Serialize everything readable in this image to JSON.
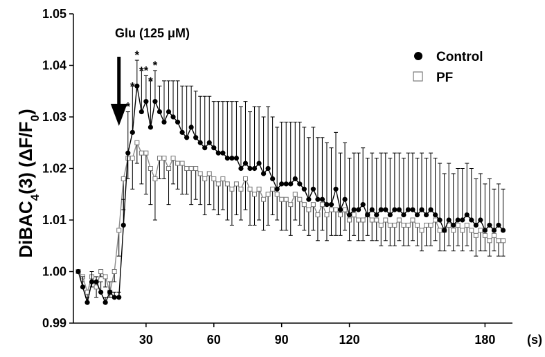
{
  "chart_data": {
    "type": "line",
    "ylabel_parts": {
      "base": "DiBAC",
      "sub1": "4",
      "mid": "(3) (ΔF/F",
      "sub2": "0",
      "end": ")"
    },
    "x_unit": "(s)",
    "xlim": [
      0,
      190
    ],
    "ylim": [
      0.99,
      1.05
    ],
    "x_ticks": [
      30,
      60,
      90,
      120,
      180
    ],
    "y_ticks": [
      0.99,
      1.0,
      1.01,
      1.02,
      1.03,
      1.04,
      1.05
    ],
    "y_tick_labels": [
      "0.99",
      "1.00",
      "1.01",
      "1.02",
      "1.03",
      "1.04",
      "1.05"
    ],
    "grid": false,
    "legend_position": "top-right",
    "annotation": {
      "text": "Glu (125 μM)",
      "x": 18
    },
    "significance_marker": "*",
    "significance_x": [
      22,
      24,
      26,
      28,
      30,
      32,
      34
    ],
    "series": [
      {
        "name": "Control",
        "marker": "filled-circle",
        "color": "#000000",
        "x": [
          0,
          2,
          4,
          6,
          8,
          10,
          12,
          14,
          16,
          18,
          20,
          22,
          24,
          26,
          28,
          30,
          32,
          34,
          36,
          38,
          40,
          42,
          44,
          46,
          48,
          50,
          52,
          54,
          56,
          58,
          60,
          62,
          64,
          66,
          68,
          70,
          72,
          74,
          76,
          78,
          80,
          82,
          84,
          86,
          88,
          90,
          92,
          94,
          96,
          98,
          100,
          102,
          104,
          106,
          108,
          110,
          112,
          114,
          116,
          118,
          120,
          122,
          124,
          126,
          128,
          130,
          132,
          134,
          136,
          138,
          140,
          142,
          144,
          146,
          148,
          150,
          152,
          154,
          156,
          158,
          160,
          162,
          164,
          166,
          168,
          170,
          172,
          174,
          176,
          178,
          180,
          182,
          184,
          186,
          188
        ],
        "values": [
          1.0,
          0.997,
          0.994,
          0.998,
          0.998,
          0.996,
          0.994,
          0.996,
          0.995,
          0.995,
          1.009,
          1.023,
          1.027,
          1.036,
          1.031,
          1.033,
          1.028,
          1.033,
          1.031,
          1.029,
          1.031,
          1.03,
          1.029,
          1.027,
          1.026,
          1.028,
          1.026,
          1.025,
          1.024,
          1.025,
          1.024,
          1.023,
          1.023,
          1.022,
          1.022,
          1.022,
          1.02,
          1.021,
          1.02,
          1.02,
          1.021,
          1.019,
          1.02,
          1.018,
          1.016,
          1.017,
          1.017,
          1.017,
          1.018,
          1.017,
          1.016,
          1.014,
          1.016,
          1.014,
          1.014,
          1.013,
          1.013,
          1.016,
          1.012,
          1.014,
          1.011,
          1.012,
          1.012,
          1.013,
          1.011,
          1.012,
          1.011,
          1.012,
          1.012,
          1.011,
          1.012,
          1.012,
          1.011,
          1.012,
          1.012,
          1.011,
          1.012,
          1.011,
          1.012,
          1.011,
          1.01,
          1.008,
          1.01,
          1.009,
          1.01,
          1.01,
          1.011,
          1.01,
          1.009,
          1.01,
          1.008,
          1.009,
          1.008,
          1.009,
          1.008
        ],
        "error": [
          0.0,
          0.002,
          0.001,
          0.002,
          0.001,
          0.002,
          0.001,
          0.002,
          0.001,
          0.001,
          0.005,
          0.008,
          0.009,
          0.005,
          0.008,
          0.005,
          0.009,
          0.006,
          0.005,
          0.008,
          0.006,
          0.007,
          0.008,
          0.009,
          0.01,
          0.008,
          0.009,
          0.009,
          0.01,
          0.009,
          0.009,
          0.01,
          0.01,
          0.011,
          0.011,
          0.011,
          0.012,
          0.012,
          0.011,
          0.012,
          0.011,
          0.011,
          0.012,
          0.012,
          0.012,
          0.012,
          0.012,
          0.012,
          0.011,
          0.012,
          0.012,
          0.012,
          0.012,
          0.012,
          0.012,
          0.012,
          0.011,
          0.011,
          0.011,
          0.011,
          0.011,
          0.011,
          0.011,
          0.011,
          0.011,
          0.011,
          0.011,
          0.011,
          0.011,
          0.011,
          0.011,
          0.011,
          0.011,
          0.011,
          0.011,
          0.011,
          0.011,
          0.011,
          0.011,
          0.011,
          0.011,
          0.011,
          0.011,
          0.01,
          0.01,
          0.01,
          0.01,
          0.01,
          0.009,
          0.009,
          0.009,
          0.009,
          0.008,
          0.008,
          0.008
        ]
      },
      {
        "name": "PF",
        "marker": "open-square",
        "color": "#000000",
        "x": [
          0,
          2,
          4,
          6,
          8,
          10,
          12,
          14,
          16,
          18,
          20,
          22,
          24,
          26,
          28,
          30,
          32,
          34,
          36,
          38,
          40,
          42,
          44,
          46,
          48,
          50,
          52,
          54,
          56,
          58,
          60,
          62,
          64,
          66,
          68,
          70,
          72,
          74,
          76,
          78,
          80,
          82,
          84,
          86,
          88,
          90,
          92,
          94,
          96,
          98,
          100,
          102,
          104,
          106,
          108,
          110,
          112,
          114,
          116,
          118,
          120,
          122,
          124,
          126,
          128,
          130,
          132,
          134,
          136,
          138,
          140,
          142,
          144,
          146,
          148,
          150,
          152,
          154,
          156,
          158,
          160,
          162,
          164,
          166,
          168,
          170,
          172,
          174,
          176,
          178,
          180,
          182,
          184,
          186,
          188
        ],
        "values": [
          1.0,
          0.999,
          0.996,
          0.999,
          0.997,
          1.0,
          0.999,
          0.996,
          1.0,
          1.008,
          1.018,
          1.022,
          1.022,
          1.025,
          1.023,
          1.023,
          1.02,
          1.018,
          1.022,
          1.022,
          1.02,
          1.022,
          1.021,
          1.021,
          1.02,
          1.02,
          1.02,
          1.019,
          1.018,
          1.019,
          1.018,
          1.017,
          1.018,
          1.017,
          1.016,
          1.017,
          1.016,
          1.018,
          1.016,
          1.015,
          1.016,
          1.014,
          1.015,
          1.016,
          1.015,
          1.014,
          1.014,
          1.013,
          1.015,
          1.014,
          1.013,
          1.012,
          1.013,
          1.011,
          1.013,
          1.011,
          1.012,
          1.012,
          1.011,
          1.012,
          1.01,
          1.011,
          1.01,
          1.01,
          1.011,
          1.01,
          1.01,
          1.009,
          1.01,
          1.009,
          1.009,
          1.01,
          1.009,
          1.009,
          1.01,
          1.009,
          1.008,
          1.009,
          1.009,
          1.01,
          1.008,
          1.008,
          1.009,
          1.008,
          1.009,
          1.008,
          1.009,
          1.008,
          1.007,
          1.008,
          1.007,
          1.006,
          1.007,
          1.006,
          1.006
        ],
        "error": [
          0.0,
          0.001,
          0.002,
          0.002,
          0.002,
          0.001,
          0.002,
          0.001,
          0.002,
          0.005,
          0.006,
          0.004,
          0.006,
          0.004,
          0.006,
          0.008,
          0.007,
          0.008,
          0.004,
          0.004,
          0.007,
          0.005,
          0.005,
          0.006,
          0.005,
          0.007,
          0.006,
          0.006,
          0.007,
          0.006,
          0.006,
          0.006,
          0.006,
          0.007,
          0.007,
          0.006,
          0.006,
          0.006,
          0.007,
          0.006,
          0.006,
          0.006,
          0.006,
          0.005,
          0.005,
          0.006,
          0.006,
          0.006,
          0.005,
          0.005,
          0.005,
          0.005,
          0.005,
          0.005,
          0.005,
          0.005,
          0.005,
          0.005,
          0.004,
          0.004,
          0.004,
          0.004,
          0.004,
          0.004,
          0.004,
          0.004,
          0.004,
          0.004,
          0.004,
          0.004,
          0.004,
          0.004,
          0.004,
          0.004,
          0.004,
          0.004,
          0.004,
          0.004,
          0.004,
          0.004,
          0.004,
          0.004,
          0.004,
          0.004,
          0.004,
          0.004,
          0.004,
          0.004,
          0.004,
          0.004,
          0.003,
          0.003,
          0.003,
          0.003,
          0.003
        ]
      }
    ]
  }
}
